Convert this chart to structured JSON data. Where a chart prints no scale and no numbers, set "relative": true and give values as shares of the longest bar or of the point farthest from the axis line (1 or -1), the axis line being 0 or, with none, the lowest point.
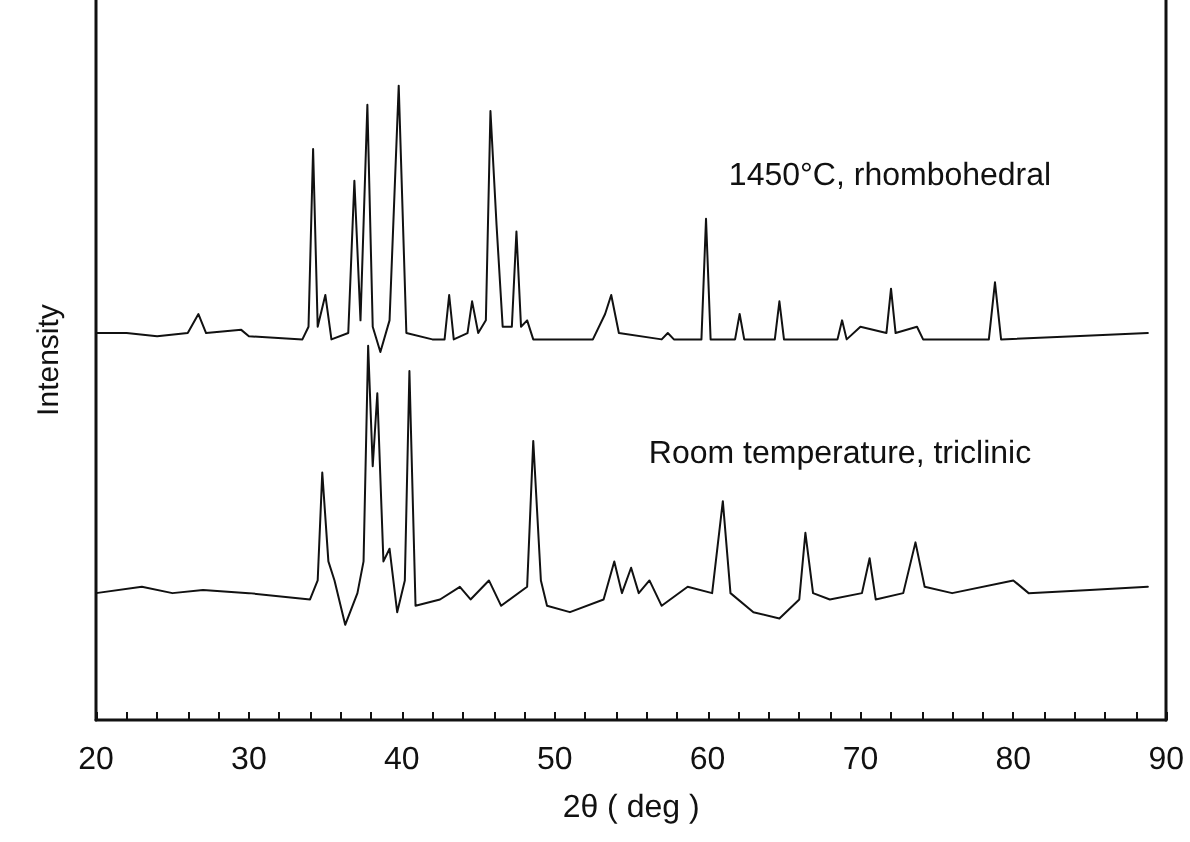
{
  "chart_data": {
    "type": "line",
    "relative": true,
    "xlabel": "2θ ( deg )",
    "ylabel": "Intensity",
    "xlim": [
      20,
      90
    ],
    "xticks": [
      20,
      {
        "value": 22,
        "label": null
      },
      {
        "value": 24,
        "label": null
      },
      {
        "value": 26,
        "label": null
      },
      {
        "value": 28,
        "label": null
      },
      30,
      {
        "value": 32,
        "label": null
      },
      {
        "value": 34,
        "label": null
      },
      {
        "value": 36,
        "label": null
      },
      {
        "value": 38,
        "label": null
      },
      40,
      {
        "value": 42,
        "label": null
      },
      {
        "value": 44,
        "label": null
      },
      {
        "value": 46,
        "label": null
      },
      {
        "value": 48,
        "label": null
      },
      50,
      {
        "value": 52,
        "label": null
      },
      {
        "value": 54,
        "label": null
      },
      {
        "value": 56,
        "label": null
      },
      {
        "value": 58,
        "label": null
      },
      60,
      {
        "value": 62,
        "label": null
      },
      {
        "value": 64,
        "label": null
      },
      {
        "value": 66,
        "label": null
      },
      {
        "value": 68,
        "label": null
      },
      70,
      {
        "value": 72,
        "label": null
      },
      {
        "value": 74,
        "label": null
      },
      {
        "value": 76,
        "label": null
      },
      {
        "value": 78,
        "label": null
      },
      80,
      {
        "value": 82,
        "label": null
      },
      {
        "value": 84,
        "label": null
      },
      {
        "value": 86,
        "label": null
      },
      {
        "value": 88,
        "label": null
      },
      90
    ],
    "grid": false,
    "marker": "none",
    "line_style": "solid",
    "annotations": [
      "1450°C, rhombohedral",
      "Room temperature, triclinic"
    ],
    "series": [
      {
        "color": "#111111",
        "x": [
          20,
          22,
          24,
          26,
          26.7,
          27.2,
          29.5,
          30,
          33.5,
          33.9,
          34.2,
          34.5,
          35.0,
          35.4,
          36.5,
          36.9,
          37.3,
          37.75,
          38.1,
          38.6,
          39.2,
          39.8,
          40.3,
          42,
          42.8,
          43.1,
          43.4,
          44.3,
          44.6,
          45,
          45.5,
          45.8,
          46.2,
          46.6,
          47.2,
          47.5,
          47.8,
          48.2,
          48.6,
          52.5,
          53.3,
          53.7,
          54.2,
          57,
          57.4,
          57.8,
          59.6,
          59.9,
          60.2,
          61.8,
          62.1,
          62.4,
          64.4,
          64.7,
          65,
          68.5,
          68.8,
          69.1,
          70,
          71.7,
          72.0,
          72.3,
          73.7,
          74.1,
          78.4,
          78.8,
          79.2,
          84,
          88.8
        ],
        "values": [
          0.61,
          0.61,
          0.605,
          0.61,
          0.64,
          0.61,
          0.615,
          0.605,
          0.6,
          0.62,
          0.9,
          0.62,
          0.67,
          0.6,
          0.61,
          0.85,
          0.63,
          0.97,
          0.62,
          0.58,
          0.63,
          1,
          0.61,
          0.6,
          0.6,
          0.67,
          0.6,
          0.61,
          0.66,
          0.61,
          0.63,
          0.96,
          0.78,
          0.62,
          0.62,
          0.77,
          0.62,
          0.63,
          0.6,
          0.6,
          0.64,
          0.67,
          0.61,
          0.6,
          0.61,
          0.6,
          0.6,
          0.79,
          0.6,
          0.6,
          0.64,
          0.6,
          0.6,
          0.66,
          0.6,
          0.6,
          0.63,
          0.6,
          0.62,
          0.61,
          0.68,
          0.61,
          0.62,
          0.6,
          0.6,
          0.69,
          0.6,
          0.605,
          0.61
        ]
      },
      {
        "color": "#111111",
        "x": [
          20,
          23,
          25,
          27,
          30,
          34,
          34.5,
          34.8,
          35.2,
          35.6,
          36.3,
          37.1,
          37.5,
          37.8,
          38.1,
          38.4,
          38.8,
          39.2,
          39.7,
          40.2,
          40.5,
          40.9,
          42.5,
          43.8,
          44.5,
          45.7,
          46.5,
          48.2,
          48.6,
          49.1,
          49.5,
          51,
          53.2,
          53.9,
          54.4,
          55.0,
          55.5,
          56.2,
          57,
          58.7,
          60.3,
          61.0,
          61.5,
          63,
          64.7,
          66,
          66.4,
          66.9,
          68,
          70.1,
          70.6,
          71,
          72.8,
          73.6,
          74.2,
          76,
          80,
          81,
          85,
          88.8
        ],
        "values": [
          0.2,
          0.21,
          0.2,
          0.205,
          0.2,
          0.19,
          0.22,
          0.39,
          0.25,
          0.22,
          0.15,
          0.2,
          0.25,
          0.59,
          0.4,
          0.515,
          0.25,
          0.27,
          0.17,
          0.22,
          0.55,
          0.18,
          0.19,
          0.21,
          0.19,
          0.22,
          0.18,
          0.21,
          0.44,
          0.22,
          0.18,
          0.17,
          0.19,
          0.25,
          0.2,
          0.24,
          0.2,
          0.22,
          0.18,
          0.21,
          0.2,
          0.345,
          0.2,
          0.17,
          0.16,
          0.19,
          0.295,
          0.2,
          0.19,
          0.2,
          0.255,
          0.19,
          0.2,
          0.28,
          0.21,
          0.2,
          0.22,
          0.2,
          0.205,
          0.21
        ]
      }
    ]
  }
}
